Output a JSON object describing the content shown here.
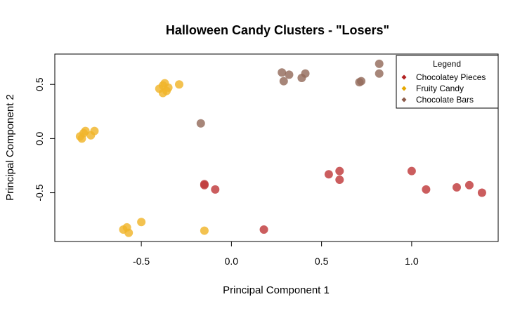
{
  "chart_data": {
    "type": "scatter",
    "title": "Halloween Candy Clusters - \"Losers\"",
    "xlabel": "Principal Component 1",
    "ylabel": "Principal Component 2",
    "xlim": [
      -0.98,
      1.48
    ],
    "ylim": [
      -0.95,
      0.78
    ],
    "xticks": [
      -0.5,
      0.0,
      0.5,
      1.0
    ],
    "xtick_labels": [
      "-0.5",
      "0.0",
      "0.5",
      "1.0"
    ],
    "yticks": [
      -0.5,
      0.0,
      0.5
    ],
    "ytick_labels": [
      "-0.5",
      "0.0",
      "0.5"
    ],
    "grid": false,
    "legend": {
      "title": "Legend",
      "placement": "top-right"
    },
    "series": [
      {
        "name": "Chocolatey Pieces",
        "color": "#c0393b",
        "legend_color": "#b22222",
        "x": [
          -0.15,
          -0.15,
          -0.09,
          0.18,
          0.54,
          0.6,
          0.6,
          1.0,
          1.08,
          1.25,
          1.32,
          1.39
        ],
        "y": [
          -0.42,
          -0.43,
          -0.47,
          -0.84,
          -0.33,
          -0.3,
          -0.38,
          -0.3,
          -0.47,
          -0.45,
          -0.43,
          -0.5
        ]
      },
      {
        "name": "Fruity Candy",
        "color": "#f0b429",
        "legend_color": "#e6a800",
        "x": [
          -0.84,
          -0.82,
          -0.81,
          -0.83,
          -0.78,
          -0.76,
          -0.4,
          -0.38,
          -0.37,
          -0.36,
          -0.35,
          -0.38,
          -0.29,
          -0.6,
          -0.58,
          -0.57,
          -0.5,
          -0.15
        ],
        "y": [
          0.02,
          0.05,
          0.07,
          -0.0,
          0.03,
          0.07,
          0.46,
          0.49,
          0.51,
          0.44,
          0.47,
          0.42,
          0.5,
          -0.84,
          -0.82,
          -0.87,
          -0.77,
          -0.85
        ]
      },
      {
        "name": "Chocolate Bars",
        "color": "#946b5c",
        "legend_color": "#8b5a4a",
        "x": [
          -0.17,
          0.28,
          0.29,
          0.32,
          0.39,
          0.41,
          0.71,
          0.72,
          0.82,
          0.82
        ],
        "y": [
          0.14,
          0.61,
          0.53,
          0.59,
          0.56,
          0.6,
          0.52,
          0.53,
          0.69,
          0.6
        ]
      }
    ]
  }
}
